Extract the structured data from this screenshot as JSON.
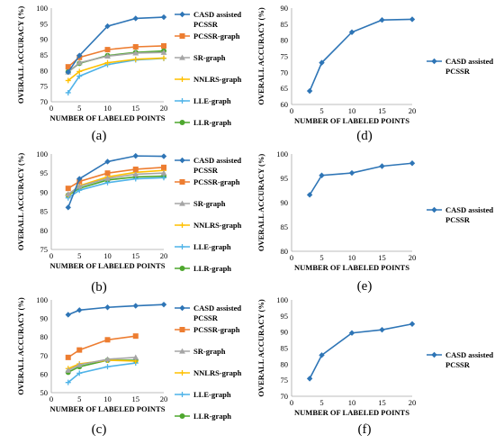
{
  "legend_entries": {
    "casd": [
      "CASD assisted",
      "PCSSR"
    ],
    "pcssr": "PCSSR-graph",
    "sr": "SR-graph",
    "nnlrs": "NNLRS-graph",
    "lle": "LLE-graph",
    "llr": "LLR-graph"
  },
  "colors": {
    "CASD assisted PCSSR": "#2e75b6",
    "PCSSR-graph": "#ed7d31",
    "SR-graph": "#a5a5a5",
    "NNLRS-graph": "#ffc000",
    "LLE-graph": "#4fb3e8",
    "LLR-graph": "#4ea72e"
  },
  "chart_data": [
    {
      "panel": "(a)",
      "type": "line",
      "xlabel": "NUMBER OF LABELED POINTS",
      "ylabel": "OVERALL ACCURACY (%)",
      "xlim": [
        0,
        20
      ],
      "xticks": [
        0,
        5,
        10,
        15,
        20
      ],
      "ylim": [
        70,
        100
      ],
      "yticks": [
        70,
        75,
        80,
        85,
        90,
        95,
        100
      ],
      "x": [
        3,
        5,
        10,
        15,
        20
      ],
      "series": [
        {
          "key": "casd",
          "values": [
            79.5,
            84.8,
            94.2,
            96.7,
            97.1
          ]
        },
        {
          "key": "pcssr",
          "values": [
            81.2,
            84.2,
            86.7,
            87.6,
            87.9
          ]
        },
        {
          "key": "sr",
          "values": [
            79.5,
            82.5,
            84.6,
            85.6,
            85.8
          ]
        },
        {
          "key": "nnlrs",
          "values": [
            76.8,
            79.7,
            82.5,
            83.6,
            84.0
          ]
        },
        {
          "key": "lle",
          "values": [
            72.9,
            78.2,
            81.9,
            83.4,
            83.9
          ]
        },
        {
          "key": "llr",
          "values": [
            79.6,
            82.3,
            84.8,
            85.8,
            86.3
          ]
        }
      ]
    },
    {
      "panel": "(b)",
      "type": "line",
      "xlabel": "NUMBER OF LABELED POINTS",
      "ylabel": "OVERALL ACCURACY (%)",
      "xlim": [
        0,
        20
      ],
      "xticks": [
        0,
        5,
        10,
        15,
        20
      ],
      "ylim": [
        75,
        100
      ],
      "yticks": [
        75,
        80,
        85,
        90,
        95,
        100
      ],
      "x": [
        3,
        5,
        10,
        15,
        20
      ],
      "series": [
        {
          "key": "casd",
          "values": [
            86.0,
            93.5,
            98.0,
            99.5,
            99.4
          ]
        },
        {
          "key": "pcssr",
          "values": [
            91.0,
            92.8,
            95.0,
            96.0,
            96.5
          ]
        },
        {
          "key": "sr",
          "values": [
            89.5,
            91.5,
            93.6,
            94.7,
            95.0
          ]
        },
        {
          "key": "nnlrs",
          "values": [
            89.3,
            91.7,
            94.0,
            95.2,
            95.7
          ]
        },
        {
          "key": "lle",
          "values": [
            88.5,
            90.5,
            92.5,
            93.5,
            93.8
          ]
        },
        {
          "key": "llr",
          "values": [
            89.2,
            91.0,
            93.2,
            94.0,
            94.2
          ]
        }
      ]
    },
    {
      "panel": "(c)",
      "type": "line",
      "xlabel": "NUMBER OF LABELED POINTS",
      "ylabel": "OVERALL ACCURACY (%)",
      "xlim": [
        0,
        20
      ],
      "xticks": [
        0,
        5,
        10,
        15,
        20
      ],
      "ylim": [
        50,
        100
      ],
      "yticks": [
        50,
        60,
        70,
        80,
        90,
        100
      ],
      "x": [
        3,
        5,
        10,
        15,
        20
      ],
      "series": [
        {
          "key": "casd",
          "values": [
            92.0,
            94.5,
            96.0,
            96.8,
            97.5
          ]
        },
        {
          "key": "pcssr",
          "values": [
            69.0,
            73.0,
            78.5,
            80.5,
            null
          ]
        },
        {
          "key": "sr",
          "values": [
            62.0,
            65.0,
            68.0,
            69.0,
            null
          ]
        },
        {
          "key": "nnlrs",
          "values": [
            63.0,
            65.5,
            67.5,
            67.0,
            null
          ]
        },
        {
          "key": "lle",
          "values": [
            55.5,
            60.5,
            64.0,
            66.0,
            null
          ]
        },
        {
          "key": "llr",
          "values": [
            61.0,
            64.0,
            67.5,
            67.5,
            null
          ]
        }
      ]
    },
    {
      "panel": "(d)",
      "type": "line",
      "xlabel": "NUMBER OF LABELED POINTS",
      "ylabel": "OVERALL ACCURACY (%)",
      "xlim": [
        0,
        20
      ],
      "xticks": [
        0,
        5,
        10,
        15,
        20
      ],
      "ylim": [
        60,
        90
      ],
      "yticks": [
        60,
        65,
        70,
        75,
        80,
        85,
        90
      ],
      "x": [
        3,
        5,
        10,
        15,
        20
      ],
      "series": [
        {
          "key": "casd",
          "values": [
            64.2,
            73.0,
            82.5,
            86.3,
            86.5
          ]
        }
      ]
    },
    {
      "panel": "(e)",
      "type": "line",
      "xlabel": "NUMBER OF LABELED POINTS",
      "ylabel": "OVERALL ACCURACY (%)",
      "xlim": [
        0,
        20
      ],
      "xticks": [
        0,
        5,
        10,
        15,
        20
      ],
      "ylim": [
        80,
        100
      ],
      "yticks": [
        80,
        85,
        90,
        95,
        100
      ],
      "x": [
        3,
        5,
        10,
        15,
        20
      ],
      "series": [
        {
          "key": "casd",
          "values": [
            91.6,
            95.6,
            96.1,
            97.5,
            98.1
          ]
        }
      ]
    },
    {
      "panel": "(f)",
      "type": "line",
      "xlabel": "NUMBER OF LABELED POINTS",
      "ylabel": "OVERALL ACCURACY (%)",
      "xlim": [
        0,
        20
      ],
      "xticks": [
        0,
        5,
        10,
        15,
        20
      ],
      "ylim": [
        70,
        100
      ],
      "yticks": [
        70,
        75,
        80,
        85,
        90,
        95,
        100
      ],
      "x": [
        3,
        5,
        10,
        15,
        20
      ],
      "series": [
        {
          "key": "casd",
          "values": [
            75.5,
            82.8,
            89.7,
            90.7,
            92.5
          ]
        }
      ]
    }
  ]
}
